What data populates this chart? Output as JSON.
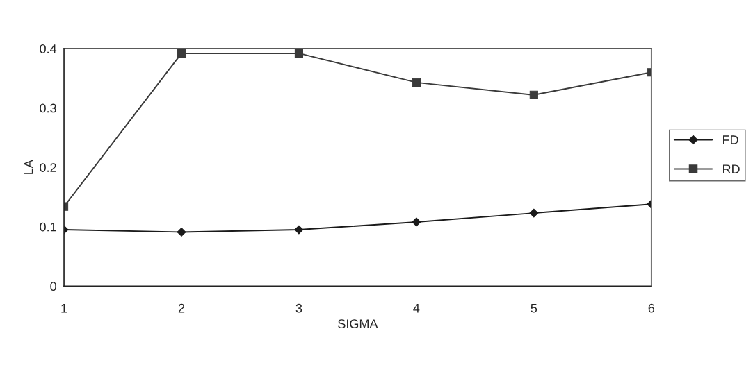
{
  "chart_data": {
    "type": "line",
    "xlabel": "SIGMA",
    "ylabel": "LA",
    "categories": [
      "1",
      "2",
      "3",
      "4",
      "5",
      "6"
    ],
    "series": [
      {
        "name": "FD",
        "color": "#1a1a1a",
        "marker": "diamond",
        "values": [
          0.095,
          0.091,
          0.095,
          0.108,
          0.123,
          0.138
        ]
      },
      {
        "name": "RD",
        "color": "#3a3a3a",
        "marker": "square",
        "values": [
          0.134,
          0.392,
          0.392,
          0.343,
          0.322,
          0.36
        ]
      }
    ],
    "ylim": [
      0,
      0.4
    ],
    "yticks": [
      0,
      0.1,
      0.2,
      0.3,
      0.4
    ],
    "legend": "right",
    "grid": false,
    "line_style": "solid"
  }
}
